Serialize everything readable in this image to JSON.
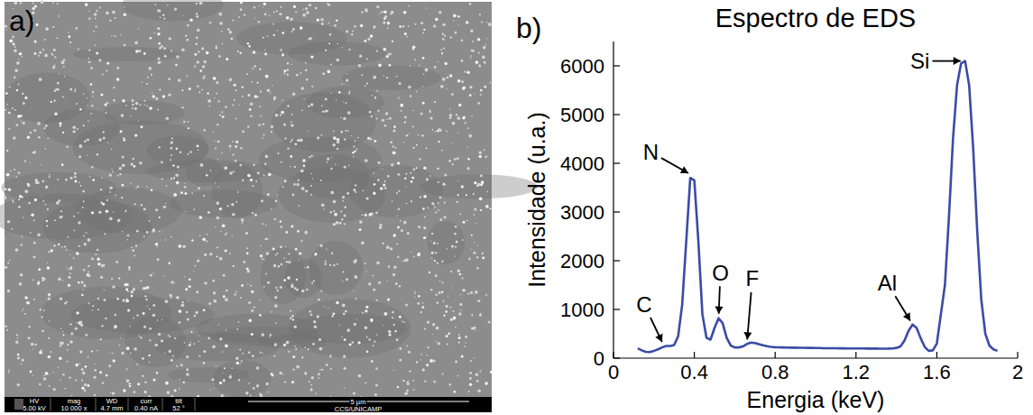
{
  "panel_labels": [
    "a)",
    "b)"
  ],
  "image_panel": {
    "info_bar": {
      "fields": [
        {
          "name": "HV",
          "value": "5.00 kV"
        },
        {
          "name": "mag",
          "value": "10 000 x"
        },
        {
          "name": "WD",
          "value": "4.7 mm"
        },
        {
          "name": "curr",
          "value": "0.40 nA"
        },
        {
          "name": "tilt",
          "value": "52 °"
        }
      ],
      "scale_bar": "5 µm",
      "credit": "CCS/UNICAMP"
    }
  },
  "chart_data": {
    "type": "line",
    "title": "Espectro de EDS",
    "x_label": "Energia (keV)",
    "y_label": "Intensidade (u.a.)",
    "x": [
      0.12,
      0.14,
      0.16,
      0.18,
      0.2,
      0.22,
      0.24,
      0.26,
      0.28,
      0.3,
      0.32,
      0.34,
      0.36,
      0.38,
      0.4,
      0.42,
      0.44,
      0.46,
      0.48,
      0.5,
      0.52,
      0.54,
      0.56,
      0.58,
      0.6,
      0.62,
      0.64,
      0.66,
      0.68,
      0.7,
      0.72,
      0.74,
      0.76,
      0.78,
      0.8,
      0.82,
      0.84,
      0.86,
      0.88,
      0.9,
      0.92,
      0.94,
      0.96,
      0.98,
      1.0,
      1.02,
      1.04,
      1.06,
      1.08,
      1.1,
      1.12,
      1.14,
      1.16,
      1.18,
      1.2,
      1.22,
      1.24,
      1.26,
      1.28,
      1.3,
      1.32,
      1.34,
      1.36,
      1.38,
      1.4,
      1.42,
      1.44,
      1.46,
      1.48,
      1.5,
      1.52,
      1.54,
      1.56,
      1.58,
      1.6,
      1.62,
      1.64,
      1.66,
      1.68,
      1.7,
      1.72,
      1.74,
      1.76,
      1.78,
      1.8,
      1.82,
      1.84,
      1.86,
      1.88,
      1.9
    ],
    "values": [
      200,
      160,
      130,
      125,
      150,
      180,
      220,
      250,
      250,
      270,
      450,
      1100,
      2400,
      3700,
      3650,
      2400,
      900,
      420,
      380,
      620,
      820,
      720,
      420,
      260,
      220,
      220,
      240,
      290,
      320,
      310,
      285,
      265,
      245,
      232,
      225,
      222,
      220,
      218,
      216,
      215,
      213,
      212,
      210,
      210,
      208,
      207,
      205,
      205,
      204,
      203,
      202,
      201,
      200,
      200,
      199,
      198,
      198,
      197,
      196,
      196,
      195,
      195,
      196,
      200,
      210,
      240,
      360,
      560,
      690,
      620,
      410,
      230,
      150,
      160,
      300,
      900,
      1500,
      2900,
      4500,
      5600,
      6050,
      6100,
      5600,
      4300,
      2600,
      1200,
      500,
      260,
      180,
      150
    ],
    "color": "#3b4ba6",
    "xlim": [
      0,
      2
    ],
    "ylim": [
      0,
      6500
    ],
    "xticks": [
      0,
      0.4,
      0.8,
      1.2,
      1.6,
      2
    ],
    "yticks": [
      0,
      1000,
      2000,
      3000,
      4000,
      5000,
      6000
    ],
    "grid": false,
    "annotations": [
      {
        "text": "C",
        "x": 0.25,
        "y": 250
      },
      {
        "text": "N",
        "x": 0.39,
        "y": 3750
      },
      {
        "text": "O",
        "x": 0.52,
        "y": 820
      },
      {
        "text": "F",
        "x": 0.66,
        "y": 290
      },
      {
        "text": "Al",
        "x": 1.48,
        "y": 690
      },
      {
        "text": "Si",
        "x": 1.74,
        "y": 6100
      }
    ]
  }
}
